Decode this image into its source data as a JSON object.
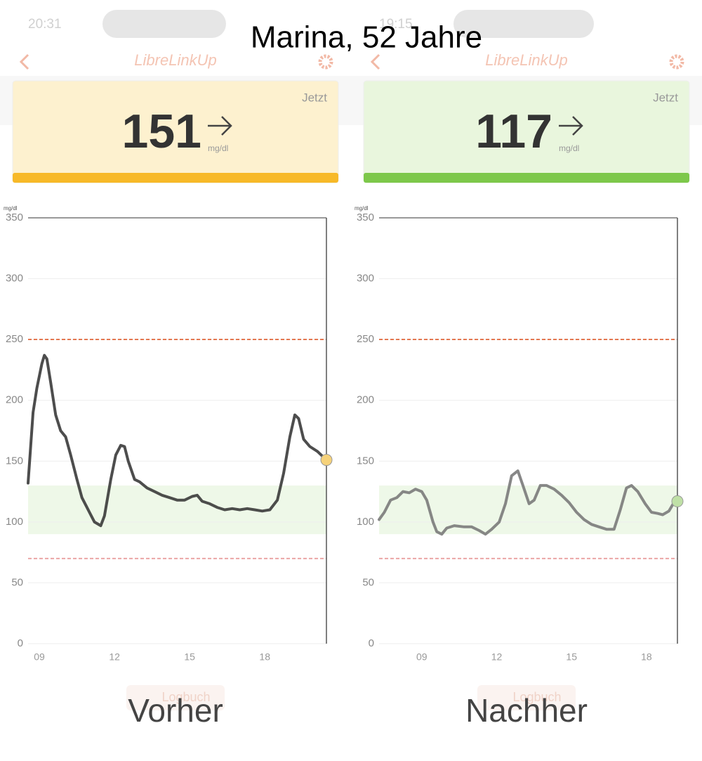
{
  "title": "Marina, 52 Jahre",
  "panels": [
    {
      "time": "20:31",
      "app": "LibreLinkUp",
      "label": "Jetzt",
      "reading": 151,
      "unit": "mg/dl",
      "caption": "Vorher",
      "logbook": "Logbuch",
      "card_color": "#fdf1cf",
      "bar_color": "#f7b928"
    },
    {
      "time": "19:15",
      "app": "LibreLinkUp",
      "label": "Jetzt",
      "reading": 117,
      "unit": "mg/dl",
      "caption": "Nachher",
      "logbook": "Logbuch",
      "card_color": "#e9f6dd",
      "bar_color": "#7dc84a"
    }
  ],
  "chart_data": [
    {
      "type": "line",
      "y_label": "mg/dl",
      "x": [
        8.55,
        8.75,
        8.9,
        9.1,
        9.2,
        9.3,
        9.45,
        9.65,
        9.85,
        10.05,
        10.25,
        10.5,
        10.7,
        11,
        11.2,
        11.45,
        11.6,
        11.85,
        12.05,
        12.25,
        12.4,
        12.55,
        12.8,
        13,
        13.3,
        13.6,
        13.9,
        14.2,
        14.5,
        14.8,
        15.1,
        15.3,
        15.5,
        15.8,
        16.1,
        16.4,
        16.7,
        17,
        17.3,
        17.6,
        17.9,
        18.2,
        18.5,
        18.75,
        19,
        19.2,
        19.35,
        19.55,
        19.8,
        20.1,
        20.46
      ],
      "series": [
        {
          "color": "#3a3a3a",
          "values": [
            132,
            190,
            210,
            230,
            237,
            234,
            215,
            188,
            175,
            170,
            155,
            135,
            120,
            108,
            100,
            97,
            105,
            135,
            155,
            163,
            162,
            150,
            135,
            133,
            128,
            125,
            122,
            120,
            118,
            118,
            121,
            122,
            117,
            115,
            112,
            110,
            111,
            110,
            111,
            110,
            109,
            110,
            118,
            140,
            170,
            188,
            185,
            168,
            162,
            158,
            151
          ]
        }
      ],
      "marker_color": "#f6d27a",
      "xlim": [
        8.55,
        20.46
      ],
      "ylim": [
        0,
        350
      ],
      "xticks": [
        {
          "value": 9,
          "label": "09"
        },
        12,
        15,
        18
      ],
      "yticks": [
        0,
        50,
        100,
        150,
        200,
        250,
        300,
        350
      ],
      "grid": true,
      "target_range": [
        90,
        130
      ],
      "limits": [
        250,
        70
      ]
    },
    {
      "type": "line",
      "y_label": "mg/dl",
      "x": [
        7.29,
        7.5,
        7.75,
        8,
        8.25,
        8.5,
        8.75,
        9,
        9.2,
        9.45,
        9.6,
        9.8,
        10,
        10.3,
        10.7,
        11,
        11.3,
        11.55,
        11.8,
        12.1,
        12.35,
        12.6,
        12.85,
        13.05,
        13.3,
        13.5,
        13.75,
        14,
        14.3,
        14.6,
        14.9,
        15.2,
        15.5,
        15.8,
        16.1,
        16.4,
        16.7,
        16.95,
        17.2,
        17.4,
        17.65,
        17.95,
        18.2,
        18.45,
        18.65,
        18.9,
        19.1,
        19.24
      ],
      "series": [
        {
          "color": "#7a7a7a",
          "values": [
            102,
            108,
            118,
            120,
            125,
            124,
            127,
            125,
            118,
            100,
            92,
            90,
            95,
            97,
            96,
            96,
            93,
            90,
            94,
            100,
            115,
            138,
            142,
            130,
            115,
            118,
            130,
            130,
            127,
            122,
            116,
            108,
            102,
            98,
            96,
            94,
            94,
            110,
            128,
            130,
            125,
            115,
            108,
            107,
            106,
            109,
            116,
            117
          ]
        }
      ],
      "marker_color": "#bfe0a6",
      "xlim": [
        7.29,
        19.24
      ],
      "ylim": [
        0,
        350
      ],
      "xticks": [
        {
          "value": 9,
          "label": "09"
        },
        12,
        15,
        18
      ],
      "yticks": [
        0,
        50,
        100,
        150,
        200,
        250,
        300,
        350
      ],
      "grid": true,
      "target_range": [
        90,
        130
      ],
      "limits": [
        250,
        70
      ]
    }
  ]
}
